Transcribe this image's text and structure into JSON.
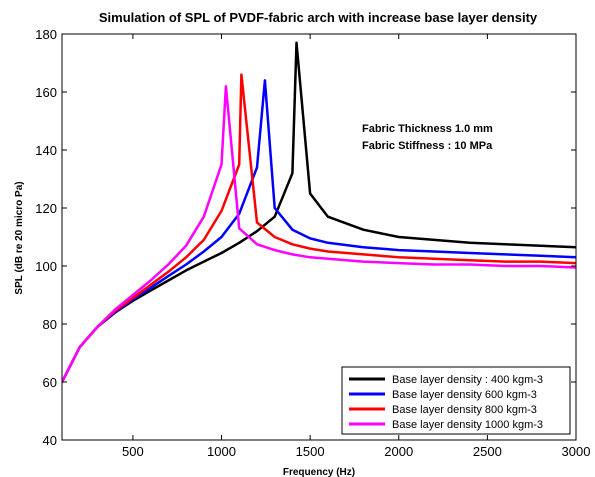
{
  "chart_data": {
    "type": "line",
    "title": "Simulation of SPL of PVDF-fabric arch with increase base layer density",
    "xlabel": "Frequency (Hz)",
    "ylabel": "SPL (dB re 20 micro Pa)",
    "xlim": [
      100,
      3000
    ],
    "ylim": [
      40,
      180
    ],
    "xticks": [
      500,
      1000,
      1500,
      2000,
      2500,
      3000
    ],
    "yticks": [
      40,
      60,
      80,
      100,
      120,
      140,
      160,
      180
    ],
    "grid": false,
    "legend_position": "bottom-right",
    "annotations": [
      "Fabric Thickness 1.0 mm",
      "Fabric Stiffness : 10 MPa"
    ],
    "x": [
      100,
      200,
      300,
      400,
      500,
      600,
      700,
      800,
      900,
      1000,
      1100,
      1200,
      1300,
      1400,
      1500,
      1600,
      1800,
      2000,
      2200,
      2400,
      2600,
      2800,
      3000
    ],
    "series": [
      {
        "name": "Base layer density : 400 kgm-3",
        "color": "#000000",
        "peak": [
          1423,
          177
        ],
        "values": [
          60,
          72,
          79,
          84,
          88,
          91.5,
          95,
          98.5,
          101.5,
          104.5,
          108,
          112,
          117,
          132,
          125,
          117,
          112.5,
          110,
          109,
          108,
          107.5,
          107,
          106.5
        ]
      },
      {
        "name": "Base layer  density 600 kgm-3",
        "color": "#0000ff",
        "peak": [
          1245,
          164
        ],
        "values": [
          60,
          72,
          79,
          84,
          88.5,
          92.5,
          96.5,
          100.5,
          105,
          110,
          118,
          134,
          120,
          112.5,
          109.5,
          108,
          106.5,
          105.5,
          105,
          104.5,
          104,
          103.5,
          103
        ]
      },
      {
        "name": "Base layer density 800 kgm-3",
        "color": "#ff0000",
        "peak": [
          1112,
          166
        ],
        "values": [
          60,
          72,
          79,
          84.5,
          89,
          93.5,
          98,
          103,
          109,
          119,
          135,
          115,
          110,
          107.5,
          106,
          105,
          104,
          103,
          102.5,
          102,
          101.5,
          101.5,
          101
        ]
      },
      {
        "name": "Base layer density 1000 kgm-3",
        "color": "#ff00ff",
        "peak": [
          1025,
          162
        ],
        "values": [
          60,
          72,
          79,
          85,
          90,
          95,
          100.5,
          107,
          117,
          135,
          113,
          107.5,
          105.5,
          104,
          103,
          102.5,
          101.5,
          101,
          100.5,
          100.5,
          100,
          100,
          99.5
        ]
      }
    ]
  }
}
